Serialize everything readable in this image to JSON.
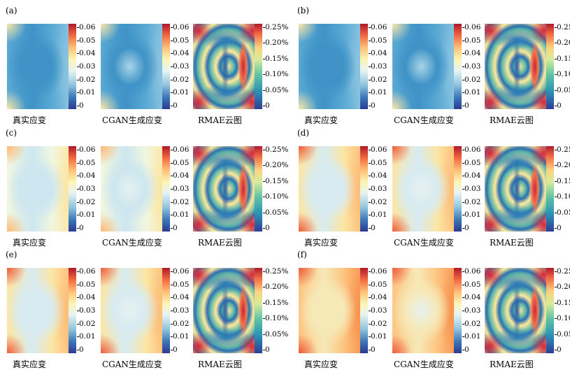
{
  "panels": [
    {
      "label": "(a)",
      "captions": [
        "真实应变",
        "CGAN生成应变",
        "RMAE云图"
      ]
    },
    {
      "label": "(b)",
      "captions": [
        "真实应变",
        "CGAN生成应变",
        "RMAE云图"
      ]
    },
    {
      "label": "(c)",
      "captions": [
        "真实应变",
        "CGAN生成应变",
        "RMAE云图"
      ]
    },
    {
      "label": "(d)",
      "captions": [
        "真实应变",
        "CGAN生成应变",
        "RMAE云图"
      ]
    },
    {
      "label": "(e)",
      "captions": [
        "真实应变",
        "CGAN生成应变",
        "RMAE云图"
      ]
    },
    {
      "label": "(f)",
      "captions": [
        "真实应变",
        "CGAN生成应变",
        "RMAE云图"
      ]
    }
  ],
  "strain_ticks": [
    "0.06",
    "0.05",
    "0.04",
    "0.03",
    "0.02",
    "0.01",
    "0"
  ],
  "rmae_ticks": [
    "0.25%",
    "0.20%",
    "0.15%",
    "0.10%",
    "0.05%",
    "0"
  ],
  "colors": {
    "low": "#2b3a93",
    "mid": "#e7f3f3",
    "high": "#b0172a"
  }
}
